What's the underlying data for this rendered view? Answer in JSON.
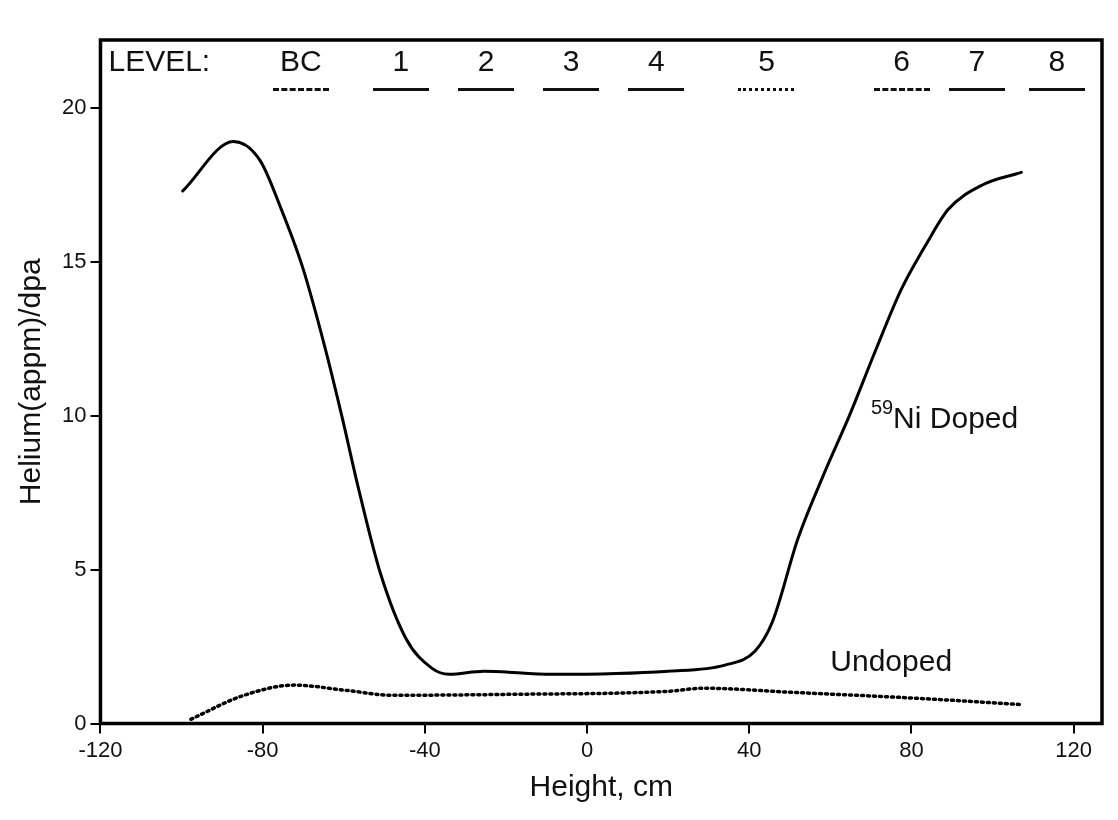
{
  "chart_data": {
    "type": "line",
    "xlabel": "Height, cm",
    "ylabel": "Helium(appm)/dpa",
    "xlim": [
      -120,
      127
    ],
    "xticks": [
      -120,
      -80,
      -40,
      0,
      40,
      80,
      120
    ],
    "ylim": [
      0,
      22.2
    ],
    "yticks": [
      0,
      5,
      10,
      15,
      20
    ],
    "grid": false,
    "legend": false,
    "marker": "none",
    "annotations": [
      "LEVEL:",
      "BC",
      "1",
      "2",
      "3",
      "4",
      "5",
      "6",
      "7",
      "8"
    ],
    "series": [
      {
        "name": "$^{59}$Ni Doped",
        "color": "#000000",
        "line_style": "solid",
        "x": [
          -99.7,
          -87.2,
          -80.7,
          -75.4,
          -70.1,
          -64.8,
          -60.5,
          -56.3,
          -51,
          -44.6,
          -38.3,
          -34,
          -25.5,
          -8.6,
          20,
          34,
          41.4,
          45.7,
          52,
          58.4,
          64.7,
          71.1,
          77.5,
          83.8,
          89.1,
          97.6,
          107.1
        ],
        "values": [
          17.3,
          18.9,
          18.3,
          16.7,
          14.8,
          12.3,
          10.0,
          7.6,
          4.9,
          2.75,
          1.8,
          1.6,
          1.7,
          1.6,
          1.7,
          1.9,
          2.35,
          3.3,
          6.0,
          8.1,
          10.0,
          12.1,
          14.1,
          15.6,
          16.7,
          17.5,
          17.9
        ]
      },
      {
        "name": "Undoped",
        "color": "#000000",
        "line_style": "dotted",
        "x": [
          -97.7,
          -85,
          -72.2,
          -59.5,
          -47.8,
          -19.2,
          20,
          28.7,
          49.9,
          81.7,
          107
        ],
        "values": [
          0.14,
          0.9,
          1.25,
          1.08,
          0.92,
          0.95,
          1.05,
          1.15,
          1.02,
          0.82,
          0.62
        ]
      }
    ]
  }
}
